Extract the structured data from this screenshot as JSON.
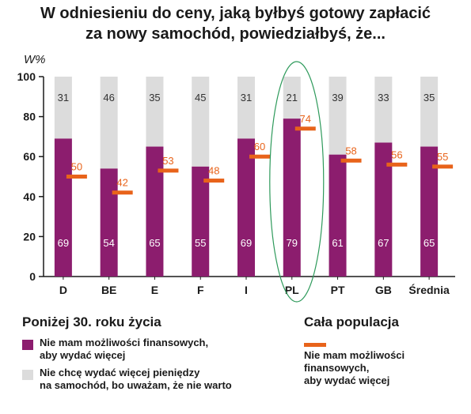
{
  "title_line1": "W odniesieniu do ceny, jaką byłbyś gotowy zapłacić",
  "title_line2": "za nowy samochód, powiedziałbyś, że...",
  "colors": {
    "purple": "#8c1d6e",
    "gray": "#dcdcdc",
    "orange": "#e8631a",
    "highlight_ellipse": "#2e9a5b",
    "axis": "#1a1a1a"
  },
  "chart_data": {
    "type": "bar",
    "ylabel": "W%",
    "ylim": [
      0,
      100
    ],
    "yticks": [
      0,
      20,
      40,
      60,
      80,
      100
    ],
    "categories": [
      "D",
      "BE",
      "E",
      "F",
      "I",
      "PL",
      "PT",
      "GB",
      "Średnia"
    ],
    "highlight_category": "PL",
    "series": [
      {
        "name": "Nie mam możliwości finansowych, aby wydać więcej",
        "kind": "stacked-bar-bottom",
        "values": [
          69,
          54,
          65,
          55,
          69,
          79,
          61,
          67,
          65
        ]
      },
      {
        "name": "Nie chcę wydać więcej pieniędzy na samochód, bo uważam, że nie warto",
        "kind": "stacked-bar-top",
        "values": [
          31,
          46,
          35,
          45,
          31,
          21,
          39,
          33,
          35
        ]
      },
      {
        "name": "Nie mam możliwości finansowych, aby wydać więcej",
        "kind": "marker",
        "values": [
          50,
          42,
          53,
          48,
          60,
          74,
          58,
          56,
          55
        ]
      }
    ]
  },
  "legend": {
    "left_heading": "Poniżej 30. roku życia",
    "item_purple": "Nie mam możliwości finansowych,\naby wydać więcej",
    "item_gray": "Nie chcę wydać więcej pieniędzy\nna samochód, bo uważam, że nie warto",
    "right_heading": "Cała populacja",
    "item_orange": "Nie mam możliwości\nfinansowych,\naby wydać więcej"
  }
}
